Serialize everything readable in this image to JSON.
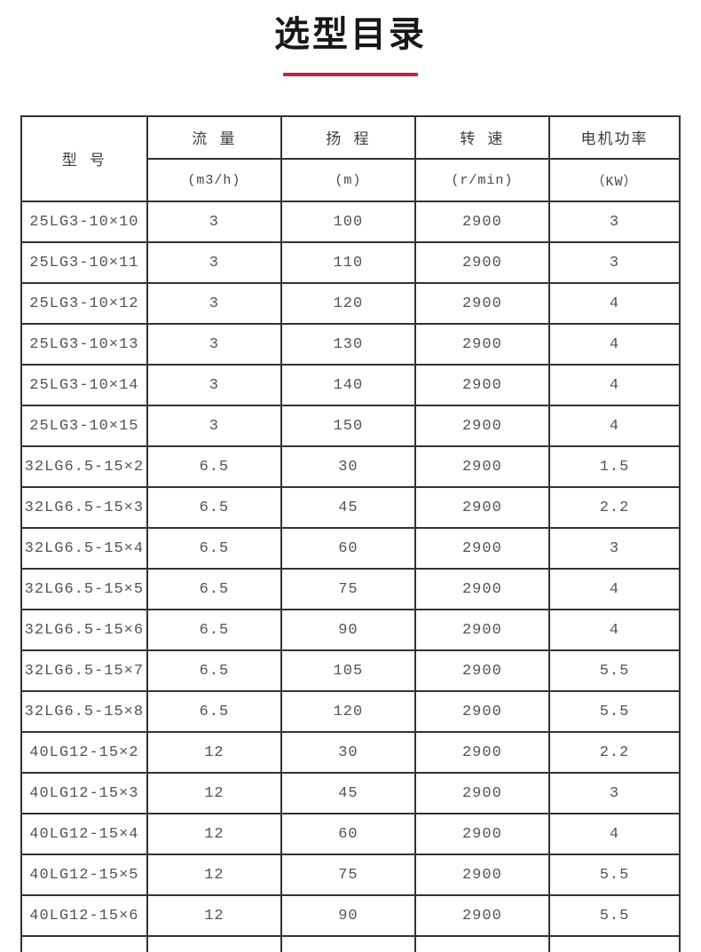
{
  "page": {
    "title": "选型目录"
  },
  "accent": {
    "divider_color": "#b92b45"
  },
  "chart_data": {
    "type": "table",
    "title": "选型目录",
    "columns": [
      {
        "label": "型 号",
        "unit": ""
      },
      {
        "label": "流  量",
        "unit": "(m3/h)"
      },
      {
        "label": "扬  程",
        "unit": "(m)"
      },
      {
        "label": "转  速",
        "unit": "(r/min)"
      },
      {
        "label": "电机功率",
        "unit": "（KW）"
      }
    ],
    "rows": [
      [
        "25LG3-10×10",
        "3",
        "100",
        "2900",
        "3"
      ],
      [
        "25LG3-10×11",
        "3",
        "110",
        "2900",
        "3"
      ],
      [
        "25LG3-10×12",
        "3",
        "120",
        "2900",
        "4"
      ],
      [
        "25LG3-10×13",
        "3",
        "130",
        "2900",
        "4"
      ],
      [
        "25LG3-10×14",
        "3",
        "140",
        "2900",
        "4"
      ],
      [
        "25LG3-10×15",
        "3",
        "150",
        "2900",
        "4"
      ],
      [
        "32LG6.5-15×2",
        "6.5",
        "30",
        "2900",
        "1.5"
      ],
      [
        "32LG6.5-15×3",
        "6.5",
        "45",
        "2900",
        "2.2"
      ],
      [
        "32LG6.5-15×4",
        "6.5",
        "60",
        "2900",
        "3"
      ],
      [
        "32LG6.5-15×5",
        "6.5",
        "75",
        "2900",
        "4"
      ],
      [
        "32LG6.5-15×6",
        "6.5",
        "90",
        "2900",
        "4"
      ],
      [
        "32LG6.5-15×7",
        "6.5",
        "105",
        "2900",
        "5.5"
      ],
      [
        "32LG6.5-15×8",
        "6.5",
        "120",
        "2900",
        "5.5"
      ],
      [
        "40LG12-15×2",
        "12",
        "30",
        "2900",
        "2.2"
      ],
      [
        "40LG12-15×3",
        "12",
        "45",
        "2900",
        "3"
      ],
      [
        "40LG12-15×4",
        "12",
        "60",
        "2900",
        "4"
      ],
      [
        "40LG12-15×5",
        "12",
        "75",
        "2900",
        "5.5"
      ],
      [
        "40LG12-15×6",
        "12",
        "90",
        "2900",
        "5.5"
      ]
    ],
    "partial_bottom_row": true
  }
}
